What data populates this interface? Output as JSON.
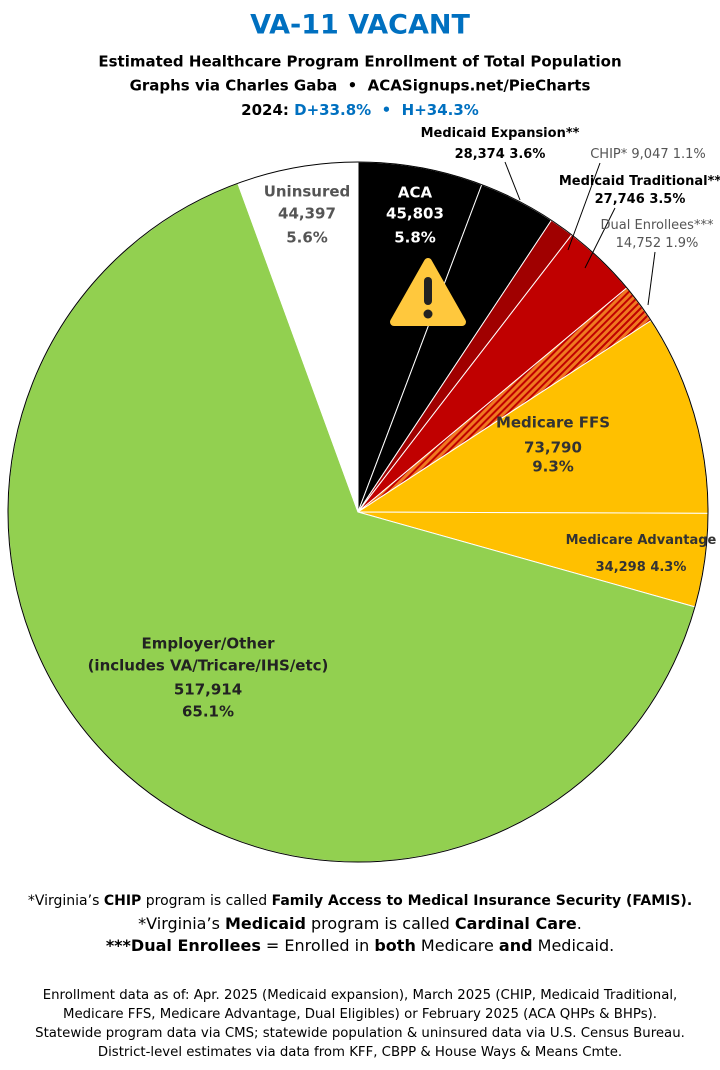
{
  "chart_data": {
    "type": "pie",
    "title": "VA-11 VACANT",
    "subtitle_lines": [
      "Estimated Healthcare Program Enrollment of Total Population",
      "Graphs via Charles Gaba  •  ACASignups.net/PieCharts"
    ],
    "lean_label": "2024: ",
    "lean_values": "D+33.8%  •  H+34.3%",
    "categories": [
      "ACA",
      "Medicaid Expansion**",
      "CHIP*",
      "Medicaid Traditional**",
      "Dual Enrollees***",
      "Medicare FFS",
      "Medicare Advantage",
      "Employer/Other",
      "Uninsured"
    ],
    "employer_note": "(includes VA/Tricare/IHS/etc)",
    "values": [
      45803,
      28374,
      9047,
      27746,
      14752,
      73790,
      34298,
      517914,
      44397
    ],
    "value_labels": [
      "45,803",
      "28,374",
      "9,047",
      "27,746",
      "14,752",
      "73,790",
      "34,298",
      "517,914",
      "44,397"
    ],
    "percent_labels": [
      "5.8%",
      "3.6%",
      "1.1%",
      "3.5%",
      "1.9%",
      "9.3%",
      "4.3%",
      "65.1%",
      "5.6%"
    ],
    "colors": [
      "#000000",
      "#000000",
      "#a00000",
      "#c00000",
      "#f07820",
      "#ffc000",
      "#ffc000",
      "#92d050",
      "#ffffff"
    ],
    "hatch": [
      false,
      false,
      false,
      false,
      true,
      false,
      false,
      false,
      false
    ],
    "hatch_color": "#c00000"
  },
  "footnotes": [
    [
      "*Virginia’s ",
      "CHIP",
      " program is called ",
      "Family Access to Medical Insurance Security",
      " (FAMIS)."
    ],
    [
      "*Virginia’s ",
      "Medicaid",
      " program is called ",
      "Cardinal Care",
      "."
    ],
    [
      "***Dual Enrollees",
      " = Enrolled in ",
      "both",
      " Medicare ",
      "and",
      " Medicaid."
    ]
  ],
  "source_lines": [
    "Enrollment data as of: Apr. 2025 (Medicaid expansion), March 2025 (CHIP, Medicaid Traditional,",
    "Medicare FFS, Medicare Advantage, Dual Eligibles) or February 2025 (ACA QHPs & BHPs).",
    "Statewide program data via CMS; statewide population & uninsured data via U.S. Census Bureau.",
    "District-level estimates via data from KFF, CBPP & House Ways & Means Cmte."
  ]
}
